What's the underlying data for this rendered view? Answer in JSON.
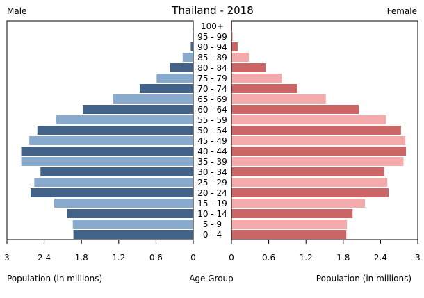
{
  "chart_data": {
    "type": "bar",
    "title": "Thailand - 2018",
    "left_label": "Male",
    "right_label": "Female",
    "xlabel_left": "Population (in millions)",
    "xlabel_center": "Age Group",
    "xlabel_right": "Population (in millions)",
    "xlim": [
      0,
      3
    ],
    "ticks_left": [
      "3",
      "2.4",
      "1.8",
      "1.2",
      "0.6",
      "0"
    ],
    "ticks_right": [
      "0",
      "0.6",
      "1.2",
      "1.8",
      "2.4",
      "3"
    ],
    "tick_values": [
      3,
      2.4,
      1.8,
      1.2,
      0.6,
      0
    ],
    "categories": [
      "0 - 4",
      "5 - 9",
      "10 - 14",
      "15 - 19",
      "20 - 24",
      "25 - 29",
      "30 - 34",
      "35 - 39",
      "40 - 44",
      "45 - 49",
      "50 - 54",
      "55 - 59",
      "60 - 64",
      "65 - 69",
      "70 - 74",
      "75 - 79",
      "80 - 84",
      "85 - 89",
      "90 - 94",
      "95 - 99",
      "100+"
    ],
    "series": [
      {
        "name": "Male",
        "values": [
          1.93,
          1.94,
          2.03,
          2.24,
          2.62,
          2.56,
          2.46,
          2.77,
          2.77,
          2.64,
          2.51,
          2.21,
          1.78,
          1.29,
          0.86,
          0.59,
          0.37,
          0.17,
          0.04,
          0.01,
          0.01
        ]
      },
      {
        "name": "Female",
        "values": [
          1.85,
          1.86,
          1.95,
          2.15,
          2.53,
          2.51,
          2.46,
          2.77,
          2.81,
          2.8,
          2.73,
          2.49,
          2.05,
          1.52,
          1.06,
          0.81,
          0.55,
          0.28,
          0.1,
          0.02,
          0.01
        ]
      }
    ],
    "colors": {
      "male_dark": "#426287",
      "male_light": "#88aacc",
      "female_dark": "#cc6666",
      "female_light": "#f4aaaa"
    }
  }
}
